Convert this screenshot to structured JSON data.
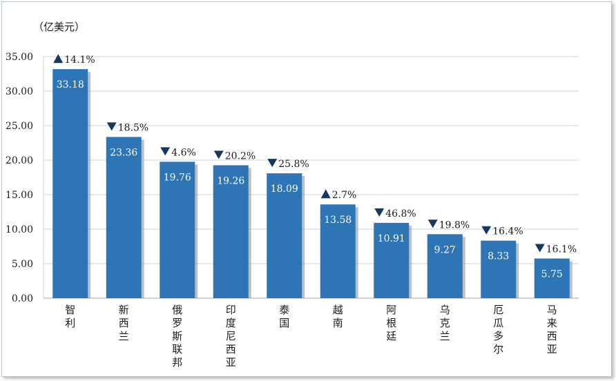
{
  "chart_data": {
    "type": "bar",
    "unit_label": "（亿美元）",
    "categories": [
      "智利",
      "新西兰",
      "俄罗斯联邦",
      "印度尼西亚",
      "泰国",
      "越南",
      "阿根廷",
      "乌克兰",
      "厄瓜多尔",
      "马来西亚"
    ],
    "values": [
      33.18,
      23.36,
      19.76,
      19.26,
      18.09,
      13.58,
      10.91,
      9.27,
      8.33,
      5.75
    ],
    "value_labels": [
      "33.18",
      "23.36",
      "19.76",
      "19.26",
      "18.09",
      "13.58",
      "10.91",
      "9.27",
      "8.33",
      "5.75"
    ],
    "changes": [
      {
        "direction": "up",
        "text": "14.1%"
      },
      {
        "direction": "down",
        "text": "18.5%"
      },
      {
        "direction": "down",
        "text": "4.6%"
      },
      {
        "direction": "down",
        "text": "20.2%"
      },
      {
        "direction": "down",
        "text": "25.8%"
      },
      {
        "direction": "up",
        "text": "2.7%"
      },
      {
        "direction": "down",
        "text": "46.8%"
      },
      {
        "direction": "down",
        "text": "19.8%"
      },
      {
        "direction": "down",
        "text": "16.4%"
      },
      {
        "direction": "down",
        "text": "16.1%"
      }
    ],
    "ylim": [
      0,
      35
    ],
    "yticks": [
      "0.00",
      "5.00",
      "10.00",
      "15.00",
      "20.00",
      "25.00",
      "30.00",
      "35.00"
    ],
    "grid": true,
    "colors": {
      "bar": "#2E75B6",
      "grid": "#c5d3e3",
      "bar_shadow": "#8c8c8c"
    }
  }
}
